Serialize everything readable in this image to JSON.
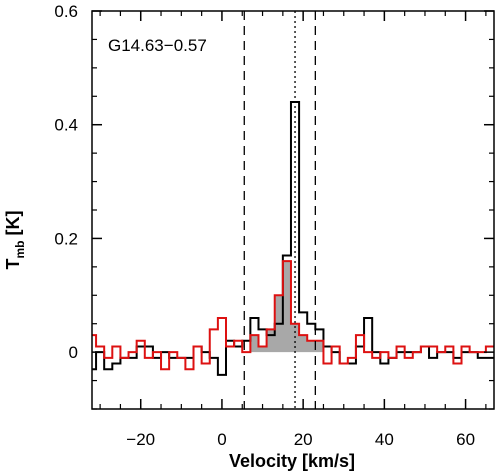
{
  "chart_data": {
    "type": "line",
    "title": "",
    "annotation": "G14.63−0.57",
    "xlabel": "Velocity [km/s]",
    "ylabel_main": "T",
    "ylabel_sub": "mb",
    "ylabel_unit": " [K]",
    "xlim": [
      -32,
      67
    ],
    "ylim": [
      -0.1,
      0.6
    ],
    "xticks": [
      -20,
      0,
      20,
      40,
      60
    ],
    "yticks": [
      0,
      0.2,
      0.4,
      0.6
    ],
    "xtick_labels": [
      "−20",
      "0",
      "20",
      "40",
      "60"
    ],
    "ytick_labels": [
      "0",
      "0.2",
      "0.4",
      "0.6"
    ],
    "grid": false,
    "step_width": 2,
    "vlines": [
      {
        "x": 5.5,
        "style": "dashed"
      },
      {
        "x": 18.0,
        "style": "dotted"
      },
      {
        "x": 23.0,
        "style": "dashed"
      }
    ],
    "shade_range": [
      5.5,
      27
    ],
    "series": [
      {
        "color": "#000000",
        "x": [
          -32,
          -30,
          -28,
          -26,
          -24,
          -22,
          -20,
          -18,
          -16,
          -14,
          -12,
          -10,
          -8,
          -6,
          -4,
          -2,
          0,
          2,
          4,
          6,
          8,
          10,
          12,
          14,
          16,
          18,
          20,
          22,
          24,
          26,
          28,
          30,
          32,
          34,
          36,
          38,
          40,
          42,
          44,
          46,
          48,
          50,
          52,
          54,
          56,
          58,
          60,
          62,
          64,
          66
        ],
        "values": [
          -0.03,
          0.0,
          -0.03,
          -0.02,
          -0.01,
          -0.01,
          0.01,
          0.01,
          -0.01,
          0.0,
          -0.01,
          -0.01,
          -0.01,
          0.01,
          0.0,
          -0.01,
          -0.04,
          0.02,
          0.01,
          0.02,
          0.06,
          0.04,
          0.03,
          0.05,
          0.17,
          0.44,
          0.07,
          0.05,
          0.04,
          0.01,
          0.0,
          -0.02,
          -0.02,
          0.01,
          0.06,
          0.0,
          -0.02,
          -0.01,
          0.0,
          0.0,
          0.0,
          0.01,
          -0.01,
          0.0,
          0.0,
          -0.01,
          0.0,
          0.0,
          -0.01,
          -0.01
        ]
      },
      {
        "color": "#dd1111",
        "x": [
          -32,
          -30,
          -28,
          -26,
          -24,
          -22,
          -20,
          -18,
          -16,
          -14,
          -12,
          -10,
          -8,
          -6,
          -4,
          -2,
          0,
          2,
          4,
          6,
          8,
          10,
          12,
          14,
          16,
          18,
          20,
          22,
          24,
          26,
          28,
          30,
          32,
          34,
          36,
          38,
          40,
          42,
          44,
          46,
          48,
          50,
          52,
          54,
          56,
          58,
          60,
          62,
          64,
          66
        ],
        "values": [
          0.03,
          0.01,
          -0.01,
          0.01,
          -0.01,
          0.0,
          0.02,
          -0.01,
          0.0,
          -0.03,
          0.0,
          -0.01,
          -0.03,
          0.01,
          -0.02,
          0.04,
          0.06,
          0.01,
          0.02,
          0.0,
          0.03,
          0.01,
          0.04,
          0.1,
          0.16,
          0.05,
          0.03,
          0.02,
          0.02,
          -0.02,
          0.01,
          -0.02,
          -0.01,
          0.03,
          0.0,
          -0.01,
          0.0,
          -0.01,
          0.01,
          -0.01,
          0.0,
          0.01,
          0.01,
          0.0,
          0.01,
          -0.02,
          0.01,
          0.0,
          0.0,
          0.01
        ]
      }
    ]
  }
}
